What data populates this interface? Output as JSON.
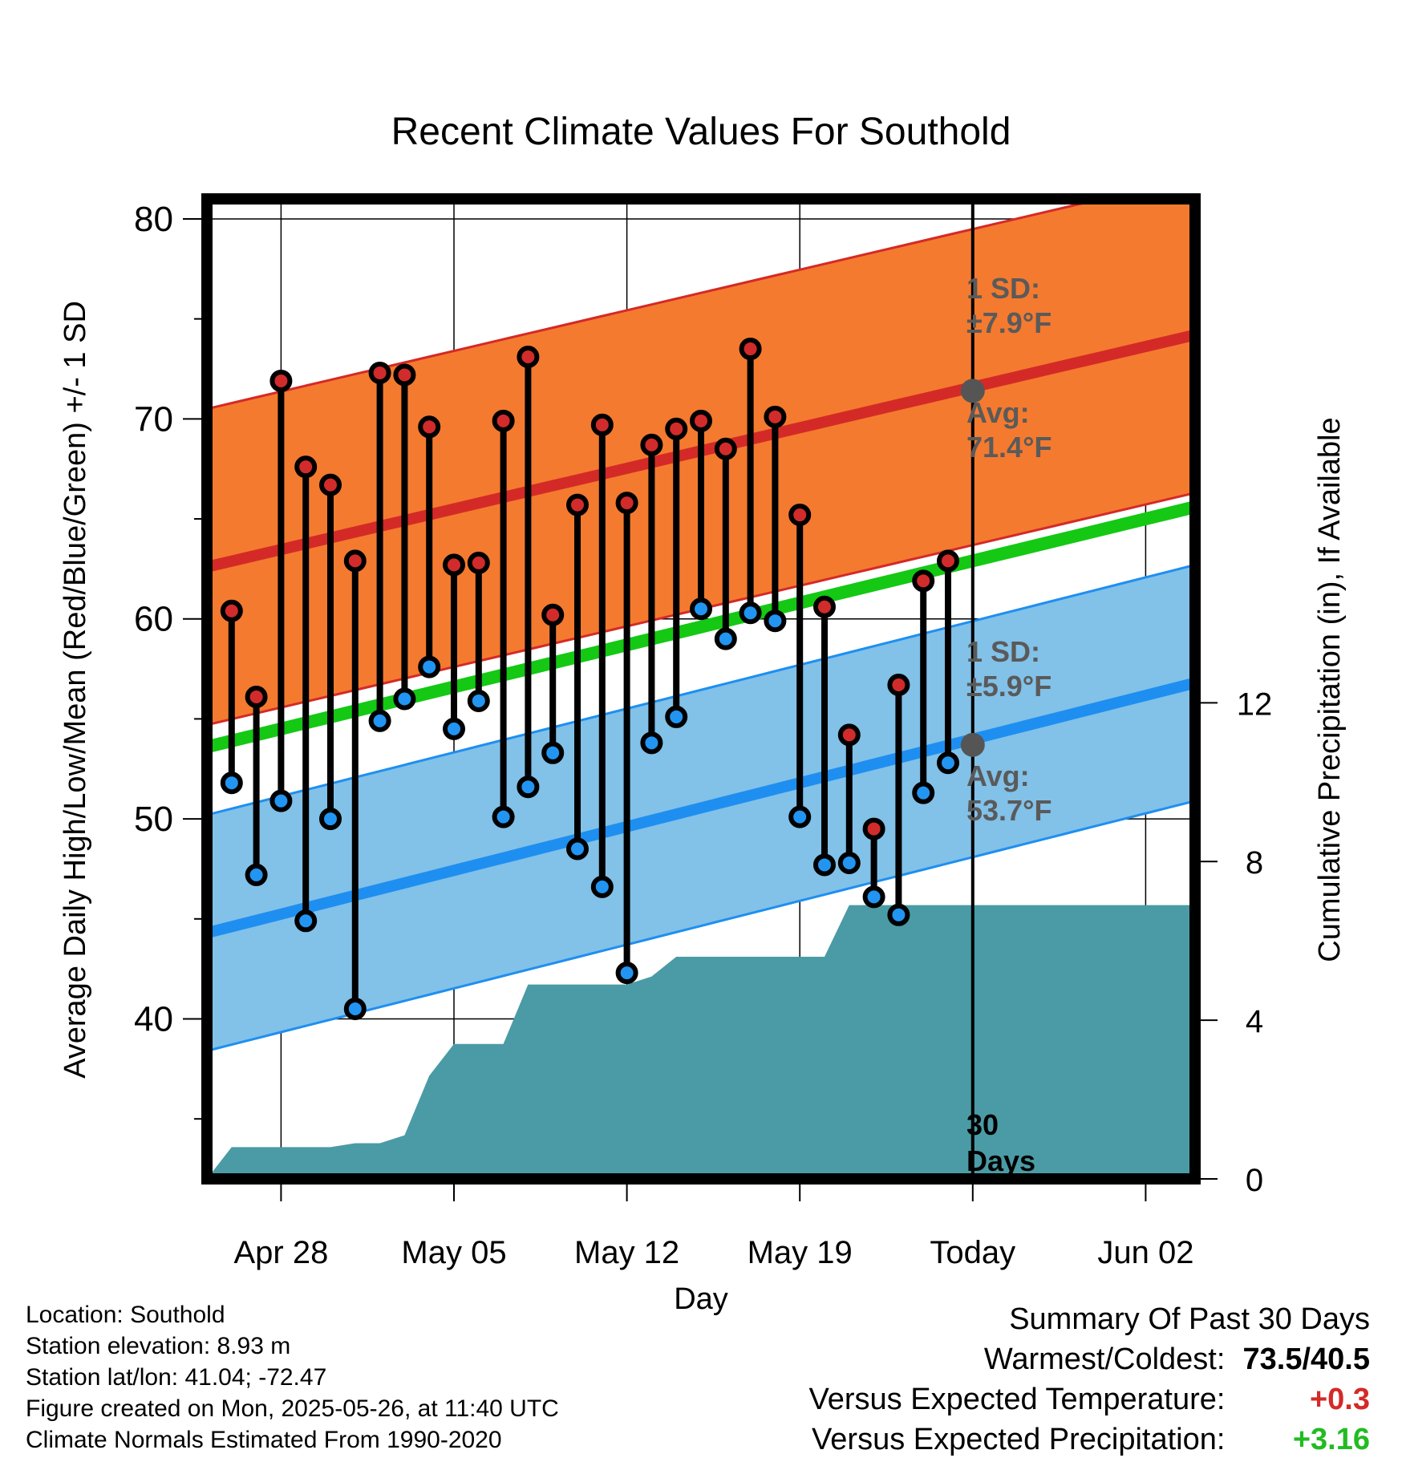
{
  "chart_data": {
    "type": "line",
    "title": "Recent Climate Values For Southold",
    "xlabel": "Day",
    "ylabel": "Average Daily High/Low/Mean (Red/Blue/Green) +/- 1 SD",
    "y2label": "Cumulative Precipitation (in), If Available",
    "x_tick_labels": [
      "Apr 28",
      "May 05",
      "May 12",
      "May 19",
      "Today",
      "Jun 02"
    ],
    "ylim": [
      32,
      81
    ],
    "yticks": [
      40,
      50,
      60,
      70,
      80
    ],
    "y2lim": [
      0,
      24.7
    ],
    "y2ticks": [
      0,
      4,
      8,
      12
    ],
    "grid": true,
    "days_window_label": [
      "30",
      "Days"
    ],
    "highs": [
      60.4,
      56.1,
      71.9,
      67.6,
      66.7,
      62.9,
      72.3,
      72.2,
      69.6,
      62.7,
      62.8,
      69.9,
      73.1,
      60.2,
      65.7,
      69.7,
      65.8,
      68.7,
      69.5,
      69.9,
      68.5,
      73.5,
      70.1,
      65.2,
      60.6,
      54.2,
      49.5,
      56.7,
      61.9,
      62.9
    ],
    "lows": [
      51.8,
      47.2,
      50.9,
      44.9,
      50.0,
      40.5,
      54.9,
      56.0,
      57.6,
      54.5,
      55.9,
      50.1,
      51.6,
      53.3,
      48.5,
      46.6,
      42.3,
      53.8,
      55.1,
      60.5,
      59.0,
      60.3,
      59.9,
      50.1,
      47.7,
      47.8,
      46.1,
      45.2,
      51.3,
      52.8
    ],
    "normal_high": {
      "start": 62.6,
      "end": 74.2,
      "sd": 7.9,
      "today_value": 71.4,
      "label_sd": "1 SD:",
      "label_sd_value": "±7.9°F",
      "label_avg": "Avg:",
      "label_avg_value": "71.4°F"
    },
    "normal_low": {
      "start": 44.3,
      "end": 56.8,
      "sd": 5.9,
      "today_value": 53.7,
      "label_sd": "1 SD:",
      "label_sd_value": "±5.9°F",
      "label_avg": "Avg:",
      "label_avg_value": "53.7°F"
    },
    "normal_mean": {
      "start": 53.6,
      "end": 65.6
    },
    "precip_cumulative": [
      0.0,
      0.8,
      0.8,
      0.8,
      0.8,
      0.8,
      0.9,
      0.9,
      1.1,
      2.6,
      3.4,
      3.4,
      3.4,
      4.9,
      4.9,
      4.9,
      4.9,
      4.9,
      5.1,
      5.6,
      5.6,
      5.6,
      5.6,
      5.6,
      5.6,
      5.6,
      6.9,
      6.9,
      6.9,
      6.9,
      6.9,
      6.9,
      6.9,
      6.9,
      6.9,
      6.9,
      6.9,
      6.9,
      6.9,
      6.9,
      6.9
    ],
    "colors": {
      "high_band": "#f47a2f",
      "high_line": "#d42a27",
      "low_band": "#82c1e8",
      "low_line": "#1e8ff0",
      "mean_line": "#14c814",
      "precip": "#4a9ba5",
      "high_dot": "#d22b2b",
      "low_dot": "#2295f2",
      "annotation": "#5a5a5a"
    }
  },
  "info": {
    "location": "Location: Southold",
    "elevation": "Station elevation: 8.93 m",
    "latlon": "Station lat/lon: 41.04; -72.47",
    "created": "Figure created on Mon, 2025-05-26, at 11:40 UTC",
    "normals": "Climate Normals Estimated From 1990-2020"
  },
  "summary": {
    "heading": "Summary Of Past 30 Days",
    "warm_cold_label": "Warmest/Coldest:",
    "warm_cold_value": "73.5/40.5",
    "temp_label": "Versus Expected Temperature:",
    "temp_value": "+0.3",
    "precip_label": "Versus Expected Precipitation:",
    "precip_value": "+3.16",
    "temp_color": "#d42a27",
    "precip_color": "#22bb22"
  }
}
